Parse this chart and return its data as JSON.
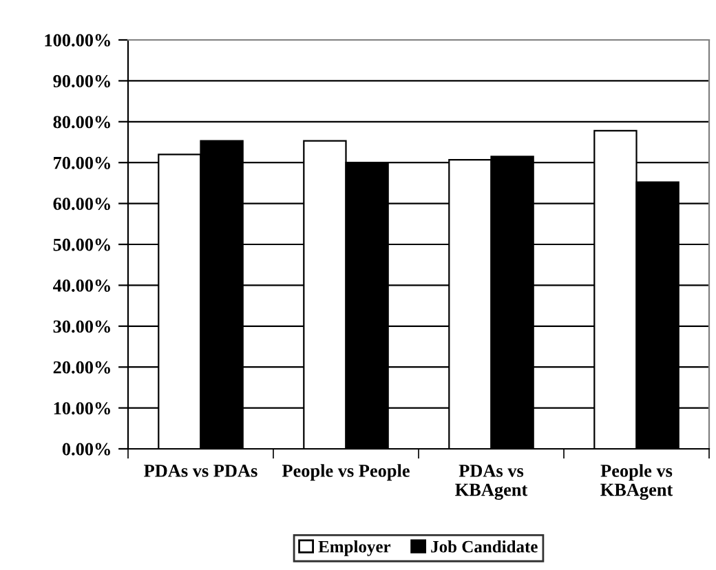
{
  "chart_data": {
    "type": "bar",
    "categories": [
      "PDAs vs PDAs",
      "People vs People",
      "PDAs vs\nKBAgent",
      "People vs\nKBAgent"
    ],
    "series": [
      {
        "name": "Employer",
        "color": "#ffffff",
        "values": [
          72.0,
          75.3,
          70.7,
          77.8
        ]
      },
      {
        "name": "Job Candidate",
        "color": "#000000",
        "values": [
          75.3,
          70.0,
          71.5,
          65.2
        ]
      }
    ],
    "ylim": [
      0,
      100
    ],
    "yticks": [
      {
        "value": 0,
        "label": "0.00%"
      },
      {
        "value": 10,
        "label": "10.00%"
      },
      {
        "value": 20,
        "label": "20.00%"
      },
      {
        "value": 30,
        "label": "30.00%"
      },
      {
        "value": 40,
        "label": "40.00%"
      },
      {
        "value": 50,
        "label": "50.00%"
      },
      {
        "value": 60,
        "label": "60.00%"
      },
      {
        "value": 70,
        "label": "70.00%"
      },
      {
        "value": 80,
        "label": "80.00%"
      },
      {
        "value": 90,
        "label": "90.00%"
      },
      {
        "value": 100,
        "label": "100.00%"
      }
    ],
    "grid": "y",
    "legend": "bottom"
  }
}
